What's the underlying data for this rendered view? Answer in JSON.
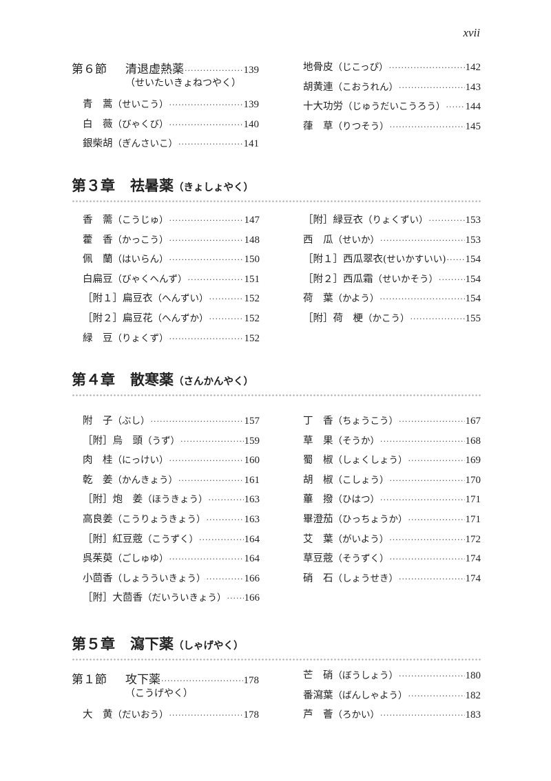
{
  "folio": "xvii",
  "sec6": {
    "label": "第６節",
    "title": "清退虚熱薬",
    "reading": "（せいたいきょねつやく）",
    "page": "139",
    "left": [
      {
        "name": "青　蒿",
        "reading": "（せいこう）",
        "page": "139"
      },
      {
        "name": "白　薇",
        "reading": "（びゃくび）",
        "page": "140"
      },
      {
        "name": "銀柴胡",
        "reading": "（ぎんさいこ）",
        "page": "141"
      }
    ],
    "right": [
      {
        "name": "地骨皮",
        "reading": "（じこっぴ）",
        "page": "142"
      },
      {
        "name": "胡黄連",
        "reading": "（こおうれん）",
        "page": "143"
      },
      {
        "name": "十大功労",
        "reading": "（じゅうだいこうろう）",
        "page": "144"
      },
      {
        "name": "葎　草",
        "reading": "（りつそう）",
        "page": "145"
      }
    ]
  },
  "ch3": {
    "label": "第３章",
    "title": "祛暑薬",
    "reading": "（きょしょやく）",
    "left": [
      {
        "name": "香　薷",
        "reading": "（こうじゅ）",
        "page": "147"
      },
      {
        "name": "藿　香",
        "reading": "（かっこう）",
        "page": "148"
      },
      {
        "name": "佩　蘭",
        "reading": "（はいらん）",
        "page": "150"
      },
      {
        "name": "白扁豆",
        "reading": "（びゃくへんず）",
        "page": "151"
      },
      {
        "name": "［附１］扁豆衣",
        "reading": "（へんずい）",
        "page": "152"
      },
      {
        "name": "［附２］扁豆花",
        "reading": "（へんずか）",
        "page": "152"
      },
      {
        "name": "緑　豆",
        "reading": "（りょくず）",
        "page": "152"
      }
    ],
    "right": [
      {
        "name": "［附］緑豆衣",
        "reading": "（りょくずい）",
        "page": "153"
      },
      {
        "name": "西　瓜",
        "reading": "（せいか）",
        "page": "153"
      },
      {
        "name": "［附１］西瓜翠衣",
        "reading": "(せいかすいい)",
        "page": "154"
      },
      {
        "name": "［附２］西瓜霜",
        "reading": "（せいかそう）",
        "page": "154"
      },
      {
        "name": "荷　葉",
        "reading": "（かよう）",
        "page": "154"
      },
      {
        "name": "［附］荷　梗",
        "reading": "（かこう）",
        "page": "155"
      }
    ]
  },
  "ch4": {
    "label": "第４章",
    "title": "散寒薬",
    "reading": "（さんかんやく）",
    "left": [
      {
        "name": "附　子",
        "reading": "（ぶし）",
        "page": "157"
      },
      {
        "name": "［附］烏　頭",
        "reading": "（うず）",
        "page": "159"
      },
      {
        "name": "肉　桂",
        "reading": "（にっけい）",
        "page": "160"
      },
      {
        "name": "乾　姜",
        "reading": "（かんきょう）",
        "page": "161"
      },
      {
        "name": "［附］炮　姜",
        "reading": "（ほうきょう）",
        "page": "163"
      },
      {
        "name": "高良姜",
        "reading": "（こうりょうきょう）",
        "page": "163"
      },
      {
        "name": "［附］紅豆蔲",
        "reading": "（こうずく）",
        "page": "164"
      },
      {
        "name": "呉茱萸",
        "reading": "（ごしゅゆ）",
        "page": "164"
      },
      {
        "name": "小茴香",
        "reading": "（しょうういきょう）",
        "page": "166"
      },
      {
        "name": "［附］大茴香",
        "reading": "（だいういきょう）",
        "page": "166"
      }
    ],
    "right": [
      {
        "name": "丁　香",
        "reading": "（ちょうこう）",
        "page": "167"
      },
      {
        "name": "草　果",
        "reading": "（そうか）",
        "page": "168"
      },
      {
        "name": "蜀　椒",
        "reading": "（しょくしょう）",
        "page": "169"
      },
      {
        "name": "胡　椒",
        "reading": "（こしょう）",
        "page": "170"
      },
      {
        "name": "蓽　撥",
        "reading": "（ひはつ）",
        "page": "171"
      },
      {
        "name": "畢澄茄",
        "reading": "（ひっちょうか）",
        "page": "171"
      },
      {
        "name": "艾　葉",
        "reading": "（がいよう）",
        "page": "172"
      },
      {
        "name": "草豆蔲",
        "reading": "（そうずく）",
        "page": "174"
      },
      {
        "name": "硝　石",
        "reading": "（しょうせき）",
        "page": "174"
      }
    ]
  },
  "ch5": {
    "label": "第５章",
    "title": "瀉下薬",
    "reading": "（しゃげやく）",
    "sec1": {
      "label": "第１節",
      "title": "攻下薬",
      "reading": "（こうげやく）",
      "page": "178"
    },
    "left": [
      {
        "name": "大　黄",
        "reading": "（だいおう）",
        "page": "178"
      }
    ],
    "right": [
      {
        "name": "芒　硝",
        "reading": "（ぼうしょう）",
        "page": "180"
      },
      {
        "name": "番瀉葉",
        "reading": "（ばんしゃよう）",
        "page": "182"
      },
      {
        "name": "芦　薈",
        "reading": "（ろかい）",
        "page": "183"
      }
    ]
  }
}
